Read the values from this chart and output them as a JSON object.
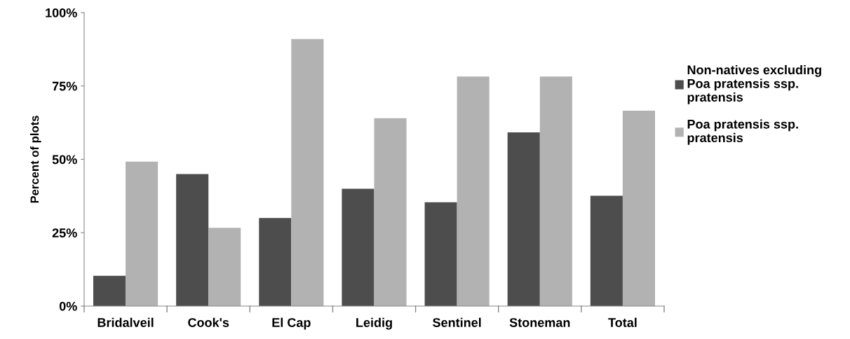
{
  "chart_data": {
    "type": "bar",
    "ylabel": "Percent of plots",
    "categories": [
      "Bridalveil",
      "Cook's",
      "El Cap",
      "Leidig",
      "Sentinel",
      "Stoneman",
      "Total"
    ],
    "series": [
      {
        "name": "Non-natives excluding\nPoa pratensis ssp.\npratensis",
        "color": "#4d4d4d",
        "values": [
          10.3,
          45,
          30,
          40,
          35.4,
          59.2,
          37.6
        ]
      },
      {
        "name": "Poa pratensis ssp.\npratensis",
        "color": "#b2b2b2",
        "values": [
          49.2,
          26.7,
          91,
          64,
          78.2,
          78.2,
          66.6
        ]
      }
    ],
    "ylim": [
      0,
      100
    ],
    "yticks": [
      {
        "value": 0,
        "label": "0%"
      },
      {
        "value": 25,
        "label": "25%"
      },
      {
        "value": 50,
        "label": "50%"
      },
      {
        "value": 75,
        "label": "75%"
      },
      {
        "value": 100,
        "label": "100%"
      }
    ],
    "grid": false,
    "legend": "right"
  }
}
